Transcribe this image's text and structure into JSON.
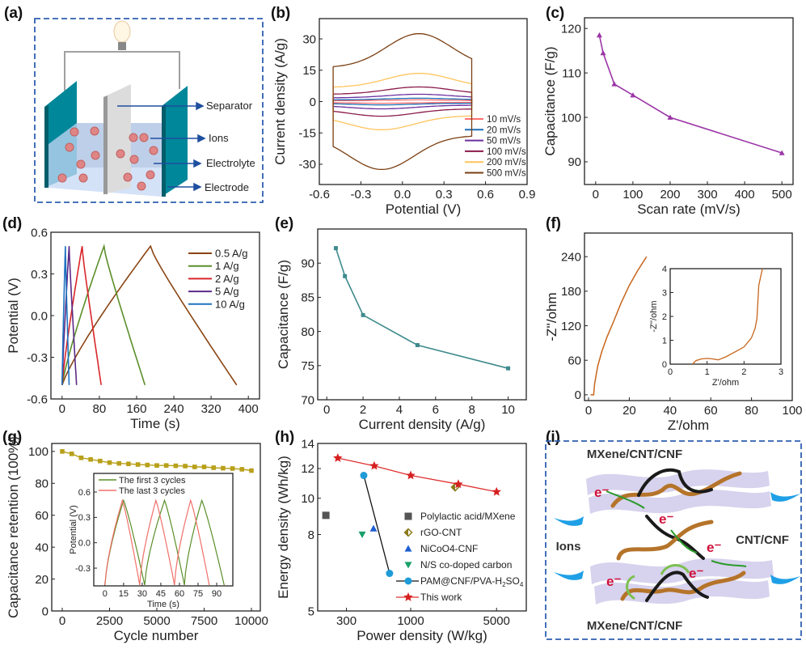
{
  "panels": {
    "a": "(a)",
    "b": "(b)",
    "c": "(c)",
    "d": "(d)",
    "e": "(e)",
    "f": "(f)",
    "g": "(g)",
    "h": "(h)",
    "i": "(i)"
  },
  "diagram_a": {
    "labels": [
      "Separator",
      "Ions",
      "Electrolyte",
      "Electrode"
    ]
  },
  "diagram_i": {
    "top": "MXene/CNT/CNF",
    "bottom": "MXene/CNT/CNF",
    "middle": "CNT/CNF",
    "ions": "Ions",
    "electron": "e⁻"
  },
  "chart_data": [
    {
      "id": "b",
      "type": "line",
      "xlabel": "Potential (V)",
      "ylabel": "Current density (A/g)",
      "xlim": [
        -0.6,
        0.9
      ],
      "ylim": [
        -39.7,
        39.7
      ],
      "xticks": [
        -0.6,
        -0.3,
        0.0,
        0.3,
        0.6,
        0.9
      ],
      "xtick_labels": [
        "-0.6",
        "-0.3",
        "0.0",
        "0.3",
        "0.6",
        "0.9"
      ],
      "yticks": [
        -30,
        -15,
        0,
        15,
        30
      ],
      "ytick_labels": [
        "-30",
        "-15",
        "0",
        "15",
        "30"
      ],
      "potential_window": [
        -0.5,
        0.5
      ],
      "legend": "bottom-right",
      "series": [
        {
          "name": "10 mV/s",
          "peak_current": 0.8,
          "color": "#ff6f6f"
        },
        {
          "name": "20 mV/s",
          "peak_current": 1.6,
          "color": "#1f6fb5"
        },
        {
          "name": "50 mV/s",
          "peak_current": 3.5,
          "color": "#6a2fa0"
        },
        {
          "name": "100 mV/s",
          "peak_current": 7,
          "color": "#8b1a4a"
        },
        {
          "name": "200 mV/s",
          "peak_current": 13.5,
          "color": "#ffc35a"
        },
        {
          "name": "500 mV/s",
          "peak_current": 32.5,
          "color": "#7b3f12"
        }
      ]
    },
    {
      "id": "c",
      "type": "line",
      "xlabel": "Scan rate (mV/s)",
      "ylabel": "Capacitance (F/g)",
      "xlim": [
        -30,
        530
      ],
      "ylim": [
        84.9,
        122.4
      ],
      "xticks": [
        0,
        100,
        200,
        300,
        400,
        500
      ],
      "xtick_labels": [
        "0",
        "100",
        "200",
        "300",
        "400",
        "500"
      ],
      "yticks": [
        90,
        100,
        110,
        120
      ],
      "ytick_labels": [
        "90",
        "100",
        "110",
        "120"
      ],
      "color": "#9b36a6",
      "marker": "triangle",
      "x": [
        10,
        20,
        50,
        100,
        200,
        500
      ],
      "y": [
        118.5,
        114.5,
        107.5,
        105,
        100,
        92
      ]
    },
    {
      "id": "d",
      "type": "line",
      "xlabel": "Time (s)",
      "ylabel": "Potential (V)",
      "xlim": [
        -24,
        424
      ],
      "ylim": [
        -0.6,
        0.6
      ],
      "xticks": [
        0,
        80,
        160,
        240,
        320,
        400
      ],
      "xtick_labels": [
        "0",
        "80",
        "160",
        "240",
        "320",
        "400"
      ],
      "yticks": [
        -0.6,
        -0.3,
        0.0,
        0.3,
        0.6
      ],
      "ytick_labels": [
        "-0.6",
        "-0.3",
        "0.0",
        "0.3",
        "0.6"
      ],
      "voltage_window": [
        -0.5,
        0.5
      ],
      "legend": "top-right",
      "series": [
        {
          "name": "0.5 A/g",
          "charge_end_s": 190,
          "discharge_end_s": 375,
          "color": "#8b4513"
        },
        {
          "name": "1 A/g",
          "charge_end_s": 90,
          "discharge_end_s": 178,
          "color": "#5a8f29"
        },
        {
          "name": "2 A/g",
          "charge_end_s": 43,
          "discharge_end_s": 84,
          "color": "#d9252a"
        },
        {
          "name": "5 A/g",
          "charge_end_s": 15,
          "discharge_end_s": 31,
          "color": "#5b2a86"
        },
        {
          "name": "10 A/g",
          "charge_end_s": 7,
          "discharge_end_s": 15,
          "color": "#1f72c0"
        }
      ]
    },
    {
      "id": "e",
      "type": "line",
      "xlabel": "Current density (A/g)",
      "ylabel": "Capacitance (F/g)",
      "xlim": [
        -0.5,
        11
      ],
      "ylim": [
        70,
        95
      ],
      "xticks": [
        0,
        2,
        4,
        6,
        8,
        10
      ],
      "xtick_labels": [
        "0",
        "2",
        "4",
        "6",
        "8",
        "10"
      ],
      "yticks": [
        70,
        75,
        80,
        85,
        90
      ],
      "ytick_labels": [
        "70",
        "75",
        "80",
        "85",
        "90"
      ],
      "color": "#3f8a8c",
      "marker": "square",
      "x": [
        0.5,
        1,
        2,
        5,
        10
      ],
      "y": [
        92.2,
        88.1,
        82.4,
        78,
        74.6
      ]
    },
    {
      "id": "f",
      "type": "line",
      "xlabel": "Z'/ohm",
      "ylabel": "-Z''/ohm",
      "xlim": [
        -2,
        100
      ],
      "ylim": [
        -10,
        281
      ],
      "xticks": [
        0,
        20,
        40,
        60,
        80,
        100
      ],
      "xtick_labels": [
        "0",
        "20",
        "40",
        "60",
        "80",
        "100"
      ],
      "yticks": [
        0,
        60,
        120,
        180,
        240
      ],
      "ytick_labels": [
        "0",
        "60",
        "120",
        "180",
        "240"
      ],
      "color": "#c8651b",
      "x": [
        1,
        2.5,
        3,
        4.5,
        6.5,
        9,
        12,
        16,
        20,
        24,
        28.5
      ],
      "y": [
        0,
        0,
        20,
        50,
        75,
        100,
        125,
        160,
        190,
        215,
        240
      ],
      "inset": {
        "xlabel": "Z'/ohm",
        "ylabel": "-Z''/ohm",
        "xlim": [
          0,
          3
        ],
        "ylim": [
          0,
          4
        ],
        "xticks": [
          0,
          1,
          2,
          3
        ],
        "xtick_labels": [
          "0",
          "1",
          "2",
          "3"
        ],
        "yticks": [
          0,
          1,
          2,
          3,
          4
        ],
        "ytick_labels": [
          "0",
          "1",
          "2",
          "3",
          "4"
        ],
        "x": [
          0.6,
          0.7,
          0.85,
          1.0,
          1.15,
          1.3,
          1.5,
          1.8,
          2.0,
          2.2,
          2.3,
          2.35,
          2.4,
          2.47,
          2.5
        ],
        "y": [
          0,
          0.15,
          0.22,
          0.24,
          0.22,
          0.18,
          0.3,
          0.55,
          0.72,
          1.1,
          1.5,
          1.9,
          3.3,
          3.8,
          4
        ]
      }
    },
    {
      "id": "g",
      "type": "line",
      "xlabel": "Cycle number",
      "ylabel": "Capacitance retention (100%)",
      "xlim": [
        -556,
        10470
      ],
      "ylim": [
        0,
        105
      ],
      "xticks": [
        0,
        2500,
        5000,
        7500,
        10000
      ],
      "xtick_labels": [
        "0",
        "2500",
        "5000",
        "7500",
        "10000"
      ],
      "yticks": [
        0,
        20,
        40,
        60,
        80,
        100
      ],
      "ytick_labels": [
        "0",
        "20",
        "40",
        "60",
        "80",
        "100"
      ],
      "color": "#b8a01a",
      "marker": "square",
      "x": [
        0,
        500,
        1000,
        1500,
        2000,
        2500,
        3000,
        3500,
        4000,
        4500,
        5000,
        5500,
        6000,
        6500,
        7000,
        7500,
        8000,
        8500,
        9000,
        9500,
        10000
      ],
      "y": [
        100,
        98.5,
        96,
        95,
        94,
        93,
        92.5,
        92.2,
        91.8,
        91.5,
        91.2,
        91.2,
        91,
        90.8,
        90.3,
        90.3,
        89.8,
        89.5,
        89.3,
        88.8,
        88
      ],
      "inset": {
        "xlabel": "Time (s)",
        "ylabel": "Potential (V)",
        "xlim": [
          -9,
          103
        ],
        "ylim": [
          -0.51,
          0.82
        ],
        "xticks": [
          0,
          15,
          30,
          45,
          60,
          75,
          90
        ],
        "xtick_labels": [
          "0",
          "15",
          "30",
          "45",
          "60",
          "75",
          "90"
        ],
        "yticks": [
          -0.3,
          0.0,
          0.3,
          0.6
        ],
        "ytick_labels": [
          "-0.3",
          "0.0",
          "0.3",
          "0.6"
        ],
        "voltage_window": [
          -0.5,
          0.5
        ],
        "series": [
          {
            "name": "The first 3 cycles",
            "color": "#5a8f29",
            "peaks_s": [
              15,
              48,
              78
            ],
            "ends_s": [
              32,
              64,
              96
            ]
          },
          {
            "name": "The last 3 cycles",
            "color": "#f0706a",
            "peaks_s": [
              14,
              41,
              69
            ],
            "ends_s": [
              28,
              56,
              84
            ]
          }
        ]
      }
    },
    {
      "id": "h",
      "type": "scatter",
      "xlabel": "Power density (W/kg)",
      "ylabel": "Energy density (Wh/kg)",
      "xscale": "log",
      "yscale": "log",
      "xlim": [
        175,
        8730
      ],
      "ylim": [
        5,
        14
      ],
      "xticks": [
        300,
        1000,
        5000
      ],
      "xtick_labels": [
        "300",
        "1000",
        "5000"
      ],
      "yticks": [
        5,
        8,
        10,
        12,
        14
      ],
      "ytick_labels": [
        "5",
        "8",
        "10",
        "12",
        "14"
      ],
      "legend": "bottom-right",
      "series": [
        {
          "name": "Polylactic acid/MXene",
          "marker": "square",
          "color": "#555555",
          "x": [
            204
          ],
          "y": [
            9.0
          ]
        },
        {
          "name": "rGO-CNT",
          "marker": "diamond",
          "color": "#8a7a1a",
          "x": [
            2300
          ],
          "y": [
            10.7
          ]
        },
        {
          "name": "NiCoO4-CNF",
          "marker": "triangle",
          "color": "#1f5fd0",
          "x": [
            498
          ],
          "y": [
            8.3
          ]
        },
        {
          "name": "N/S co-doped carbon",
          "marker": "triangle-down",
          "color": "#1aa06a",
          "x": [
            403
          ],
          "y": [
            8.0
          ]
        },
        {
          "name": "PAM@CNF/PVA-H2SO4",
          "marker": "circle",
          "color": "#1f9bd7",
          "line": "#111111",
          "x": [
            415,
            673
          ],
          "y": [
            11.5,
            6.3
          ]
        },
        {
          "name": "This work",
          "marker": "star",
          "color": "#d62020",
          "line": "#e03030",
          "x": [
            255,
            505,
            1000,
            2440,
            5000
          ],
          "y": [
            12.8,
            12.2,
            11.5,
            10.9,
            10.4
          ]
        }
      ]
    }
  ]
}
